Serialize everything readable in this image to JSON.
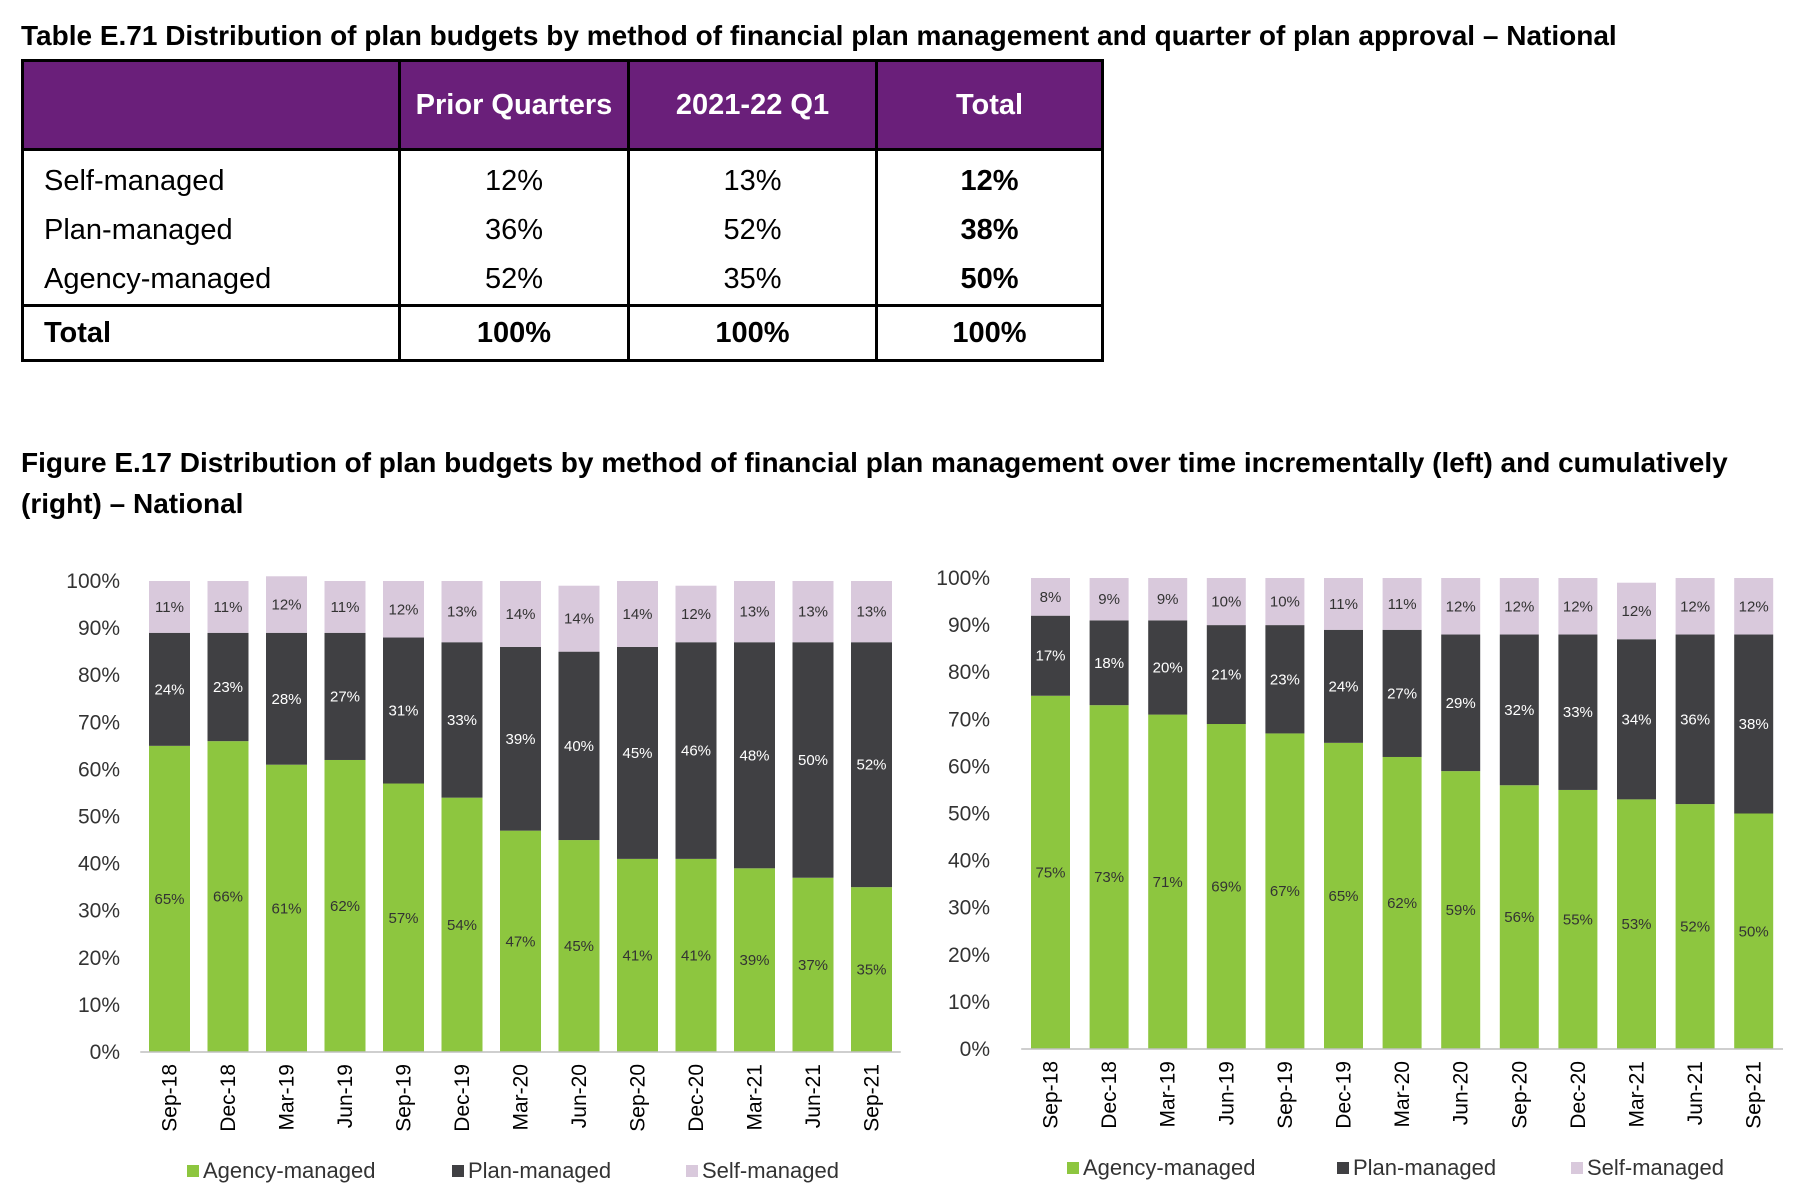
{
  "table": {
    "title": "Table E.71 Distribution of plan budgets by method of financial plan management and quarter of plan approval – National",
    "headers": [
      "",
      "Prior Quarters",
      "2021-22 Q1",
      "Total"
    ],
    "rows": [
      [
        "Self-managed",
        "12%",
        "13%",
        "12%"
      ],
      [
        "Plan-managed",
        "36%",
        "52%",
        "38%"
      ],
      [
        "Agency-managed",
        "52%",
        "35%",
        "50%"
      ]
    ],
    "total_row": [
      "Total",
      "100%",
      "100%",
      "100%"
    ]
  },
  "figure": {
    "title": "Figure E.17 Distribution of plan budgets by method of financial plan management over time incrementally (left) and cumulatively (right) – National"
  },
  "colors": {
    "header_bg": "#6a1f7a",
    "agency": "#8dc63f",
    "plan": "#404043",
    "self": "#d9c9dc"
  },
  "chart_data": [
    {
      "type": "bar",
      "stacked": true,
      "categories": [
        "Sep-18",
        "Dec-18",
        "Mar-19",
        "Jun-19",
        "Sep-19",
        "Dec-19",
        "Mar-20",
        "Jun-20",
        "Sep-20",
        "Dec-20",
        "Mar-21",
        "Jun-21",
        "Sep-21"
      ],
      "series": [
        {
          "name": "Agency-managed",
          "values": [
            65,
            66,
            61,
            62,
            57,
            54,
            47,
            45,
            41,
            41,
            39,
            37,
            35
          ]
        },
        {
          "name": "Plan-managed",
          "values": [
            24,
            23,
            28,
            27,
            31,
            33,
            39,
            40,
            45,
            46,
            48,
            50,
            52
          ]
        },
        {
          "name": "Self-managed",
          "values": [
            11,
            11,
            12,
            11,
            12,
            13,
            14,
            14,
            14,
            12,
            13,
            13,
            13
          ]
        }
      ],
      "yticks": [
        "0%",
        "10%",
        "20%",
        "30%",
        "40%",
        "50%",
        "60%",
        "70%",
        "80%",
        "90%",
        "100%"
      ],
      "ylim": [
        0,
        100
      ],
      "legend": "bottom"
    },
    {
      "type": "bar",
      "stacked": true,
      "categories": [
        "Sep-18",
        "Dec-18",
        "Mar-19",
        "Jun-19",
        "Sep-19",
        "Dec-19",
        "Mar-20",
        "Jun-20",
        "Sep-20",
        "Dec-20",
        "Mar-21",
        "Jun-21",
        "Sep-21"
      ],
      "series": [
        {
          "name": "Agency-managed",
          "values": [
            75,
            73,
            71,
            69,
            67,
            65,
            62,
            59,
            56,
            55,
            53,
            52,
            50
          ]
        },
        {
          "name": "Plan-managed",
          "values": [
            17,
            18,
            20,
            21,
            23,
            24,
            27,
            29,
            32,
            33,
            34,
            36,
            38
          ]
        },
        {
          "name": "Self-managed",
          "values": [
            8,
            9,
            9,
            10,
            10,
            11,
            11,
            12,
            12,
            12,
            12,
            12,
            12
          ]
        }
      ],
      "yticks": [
        "0%",
        "10%",
        "20%",
        "30%",
        "40%",
        "50%",
        "60%",
        "70%",
        "80%",
        "90%",
        "100%"
      ],
      "ylim": [
        0,
        100
      ],
      "legend": "bottom"
    }
  ]
}
